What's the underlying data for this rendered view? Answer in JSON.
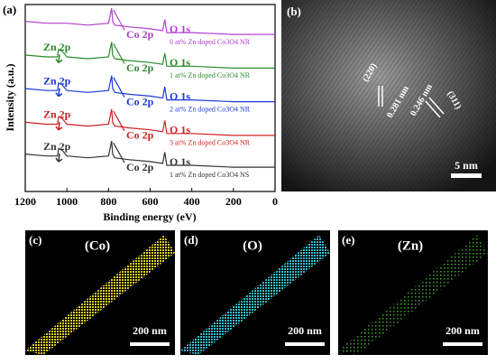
{
  "figure": {
    "panel_a": {
      "label": "(a)",
      "chart": {
        "type": "line",
        "x_label": "Binding energy (eV)",
        "y_label": "Intensity (a.u.)",
        "xlim": [
          1200,
          0
        ],
        "xticks": [
          1200,
          1000,
          800,
          600,
          400,
          200,
          0
        ],
        "ylim": [
          0,
          100
        ],
        "x": [
          1200,
          1100,
          1045,
          1040,
          1022,
          1000,
          900,
          800,
          785,
          780,
          770,
          700,
          600,
          540,
          530,
          520,
          400,
          200,
          0
        ],
        "series": [
          {
            "name": "1 at% Zn doped Co3O4 NS",
            "color": "#333333",
            "peak_labels": [
              "Zn 2p",
              "Co 2p",
              "O 1s"
            ],
            "values": [
              20,
              19,
              19,
              23,
              22,
              19,
              18,
              19,
              27,
              20,
              18,
              17,
              16,
              15,
              21,
              14,
              14,
              13,
              13
            ]
          },
          {
            "name": "3 at% Zn doped Co3O4 NR",
            "color": "#d02020",
            "peak_labels": [
              "Zn 2p",
              "Co 2p",
              "O 1s"
            ],
            "values": [
              37,
              36,
              36,
              40,
              39,
              36,
              35,
              36,
              44,
              37,
              35,
              34,
              33,
              32,
              38,
              31,
              31,
              30,
              30
            ]
          },
          {
            "name": "2 at% Zn doped Co3O4 NR",
            "color": "#1a3adb",
            "peak_labels": [
              "Zn 2p",
              "Co 2p",
              "O 1s"
            ],
            "values": [
              55,
              54,
              54,
              58,
              57,
              54,
              53,
              54,
              62,
              55,
              53,
              52,
              51,
              50,
              56,
              49,
              49,
              48,
              48
            ]
          },
          {
            "name": "1 at% Zn doped Co3O4 NR",
            "color": "#2a8a2a",
            "peak_labels": [
              "Zn 2p",
              "Co 2p",
              "O 1s"
            ],
            "values": [
              73,
              72,
              72,
              76,
              75,
              72,
              71,
              72,
              80,
              73,
              71,
              70,
              69,
              68,
              74,
              67,
              67,
              66,
              66
            ]
          },
          {
            "name": "0 at% Zn doped Co3O4 NR",
            "color": "#b040d0",
            "peak_labels": [
              "Co 2p",
              "O 1s"
            ],
            "values": [
              91,
              90,
              90,
              90,
              90,
              90,
              89,
              90,
              98,
              91,
              89,
              88,
              87,
              86,
              92,
              85,
              85,
              84,
              84
            ]
          }
        ]
      }
    },
    "panel_b": {
      "label": "(b)",
      "plane_1": "(220)",
      "spacing_1": "0.281 nm",
      "plane_2": "(311)",
      "spacing_2": "0.246 nm",
      "scale": "5 nm"
    },
    "panel_c": {
      "label": "(c)",
      "element": "(Co)",
      "scale": "200 nm"
    },
    "panel_d": {
      "label": "(d)",
      "element": "(O)",
      "scale": "200 nm"
    },
    "panel_e": {
      "label": "(e)",
      "element": "(Zn)",
      "scale": "200 nm"
    }
  }
}
